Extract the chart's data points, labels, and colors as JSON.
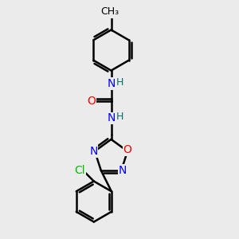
{
  "bg_color": "#ebebeb",
  "bond_color": "#000000",
  "N_color": "#0000ff",
  "O_color": "#ff0000",
  "Cl_color": "#00bb00",
  "H_color": "#007070",
  "line_width": 1.8,
  "font_size": 10,
  "figsize": [
    3.0,
    3.0
  ],
  "dpi": 100,
  "xlim": [
    0,
    10
  ],
  "ylim": [
    0,
    10
  ]
}
